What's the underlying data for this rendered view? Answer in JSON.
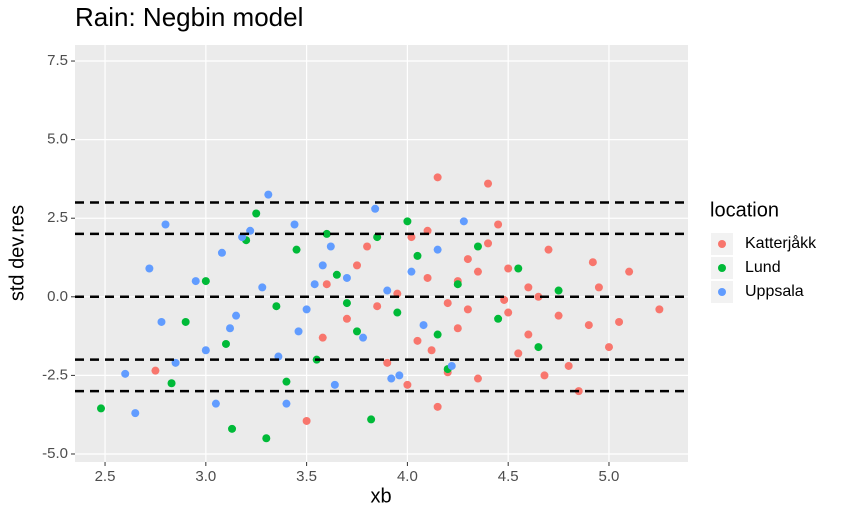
{
  "chart_data": {
    "type": "scatter",
    "title": "Rain: Negbin model",
    "x_label": "xb",
    "y_label": "std dev.res",
    "xlim": [
      2.351,
      5.392
    ],
    "ylim": [
      -5.255,
      8.01
    ],
    "xticks": [
      2.5,
      {
        "value": 3,
        "label": "3.0"
      },
      3.5,
      {
        "value": 4,
        "label": "4.0"
      },
      4.5,
      {
        "value": 5,
        "label": "5.0"
      }
    ],
    "yticks": [
      {
        "value": -5,
        "label": "-5.0"
      },
      -2.5,
      {
        "value": 0,
        "label": "0.0"
      },
      2.5,
      {
        "value": 5,
        "label": "5.0"
      },
      7.5
    ],
    "reference_lines": [
      3,
      2,
      0,
      -2,
      -3
    ],
    "grid": true,
    "legend_title": "location",
    "legend_position": "right",
    "series": [
      {
        "name": "Katterjåkk",
        "color": "#F8766D",
        "x": [
          4.15,
          4.4,
          4.15,
          3.5,
          4.85,
          2.75,
          5.25,
          5.1,
          5.0,
          4.9,
          4.7,
          4.6,
          4.5,
          4.3,
          4.2,
          4.1,
          4.05,
          3.95,
          3.9,
          3.8,
          3.7,
          3.6,
          4.25,
          4.35,
          4.45,
          4.55,
          4.65,
          4.75,
          4.8,
          4.95,
          5.05,
          4.0,
          4.1,
          4.2,
          4.3,
          4.4,
          4.5,
          4.6,
          4.25,
          4.35,
          3.75,
          3.85,
          4.12,
          4.48,
          4.68,
          4.02,
          3.58,
          4.92
        ],
        "values": [
          3.8,
          3.6,
          -3.5,
          -3.95,
          -3.0,
          -2.35,
          -0.4,
          0.8,
          -1.6,
          -0.9,
          1.5,
          0.3,
          -0.5,
          1.2,
          -0.2,
          0.6,
          -1.4,
          0.1,
          -2.1,
          1.6,
          -0.7,
          0.4,
          -1.0,
          0.8,
          2.3,
          -1.8,
          0.0,
          -0.6,
          -2.2,
          0.3,
          -0.8,
          -2.8,
          2.1,
          -2.4,
          -0.4,
          1.7,
          0.9,
          -1.2,
          0.5,
          -2.6,
          1.0,
          -0.3,
          -1.7,
          -0.1,
          -2.5,
          1.9,
          -1.3,
          1.1
        ]
      },
      {
        "name": "Lund",
        "color": "#00BA38",
        "x": [
          2.48,
          3.3,
          3.13,
          3.25,
          4.0,
          3.82,
          2.83,
          2.9,
          3.0,
          3.1,
          3.2,
          3.35,
          3.45,
          3.55,
          3.65,
          3.75,
          3.85,
          3.95,
          4.05,
          4.15,
          4.25,
          4.35,
          4.45,
          4.55,
          4.65,
          4.75,
          3.4,
          3.6,
          3.7,
          4.2
        ],
        "values": [
          -3.55,
          -4.5,
          -4.2,
          2.65,
          2.4,
          -3.9,
          -2.75,
          -0.8,
          0.5,
          -1.5,
          1.8,
          -0.3,
          1.5,
          -2.0,
          0.7,
          -1.1,
          1.9,
          -0.5,
          1.3,
          -1.2,
          0.4,
          1.6,
          -0.7,
          0.9,
          -1.6,
          0.2,
          -2.7,
          2.0,
          -0.2,
          -2.3
        ]
      },
      {
        "name": "Uppsala",
        "color": "#619CFF",
        "x": [
          3.31,
          2.65,
          2.6,
          2.8,
          4.28,
          3.05,
          3.4,
          2.72,
          2.85,
          2.95,
          3.0,
          3.08,
          3.15,
          3.22,
          3.28,
          3.36,
          3.44,
          3.5,
          3.58,
          3.64,
          3.7,
          3.78,
          3.84,
          3.9,
          3.96,
          4.02,
          4.08,
          4.15,
          4.22,
          3.12,
          3.18,
          3.46,
          3.54,
          2.78,
          3.62,
          3.92
        ],
        "values": [
          3.25,
          -3.7,
          -2.45,
          2.3,
          2.4,
          -3.4,
          -3.4,
          0.9,
          -2.1,
          0.5,
          -1.7,
          1.4,
          -0.6,
          2.1,
          0.3,
          -1.9,
          2.3,
          -0.4,
          1.0,
          -2.8,
          0.6,
          -1.3,
          2.8,
          0.2,
          -2.5,
          0.8,
          -0.9,
          1.5,
          -2.2,
          -1.0,
          1.9,
          -1.1,
          0.4,
          -0.8,
          1.6,
          -2.6
        ]
      }
    ]
  }
}
